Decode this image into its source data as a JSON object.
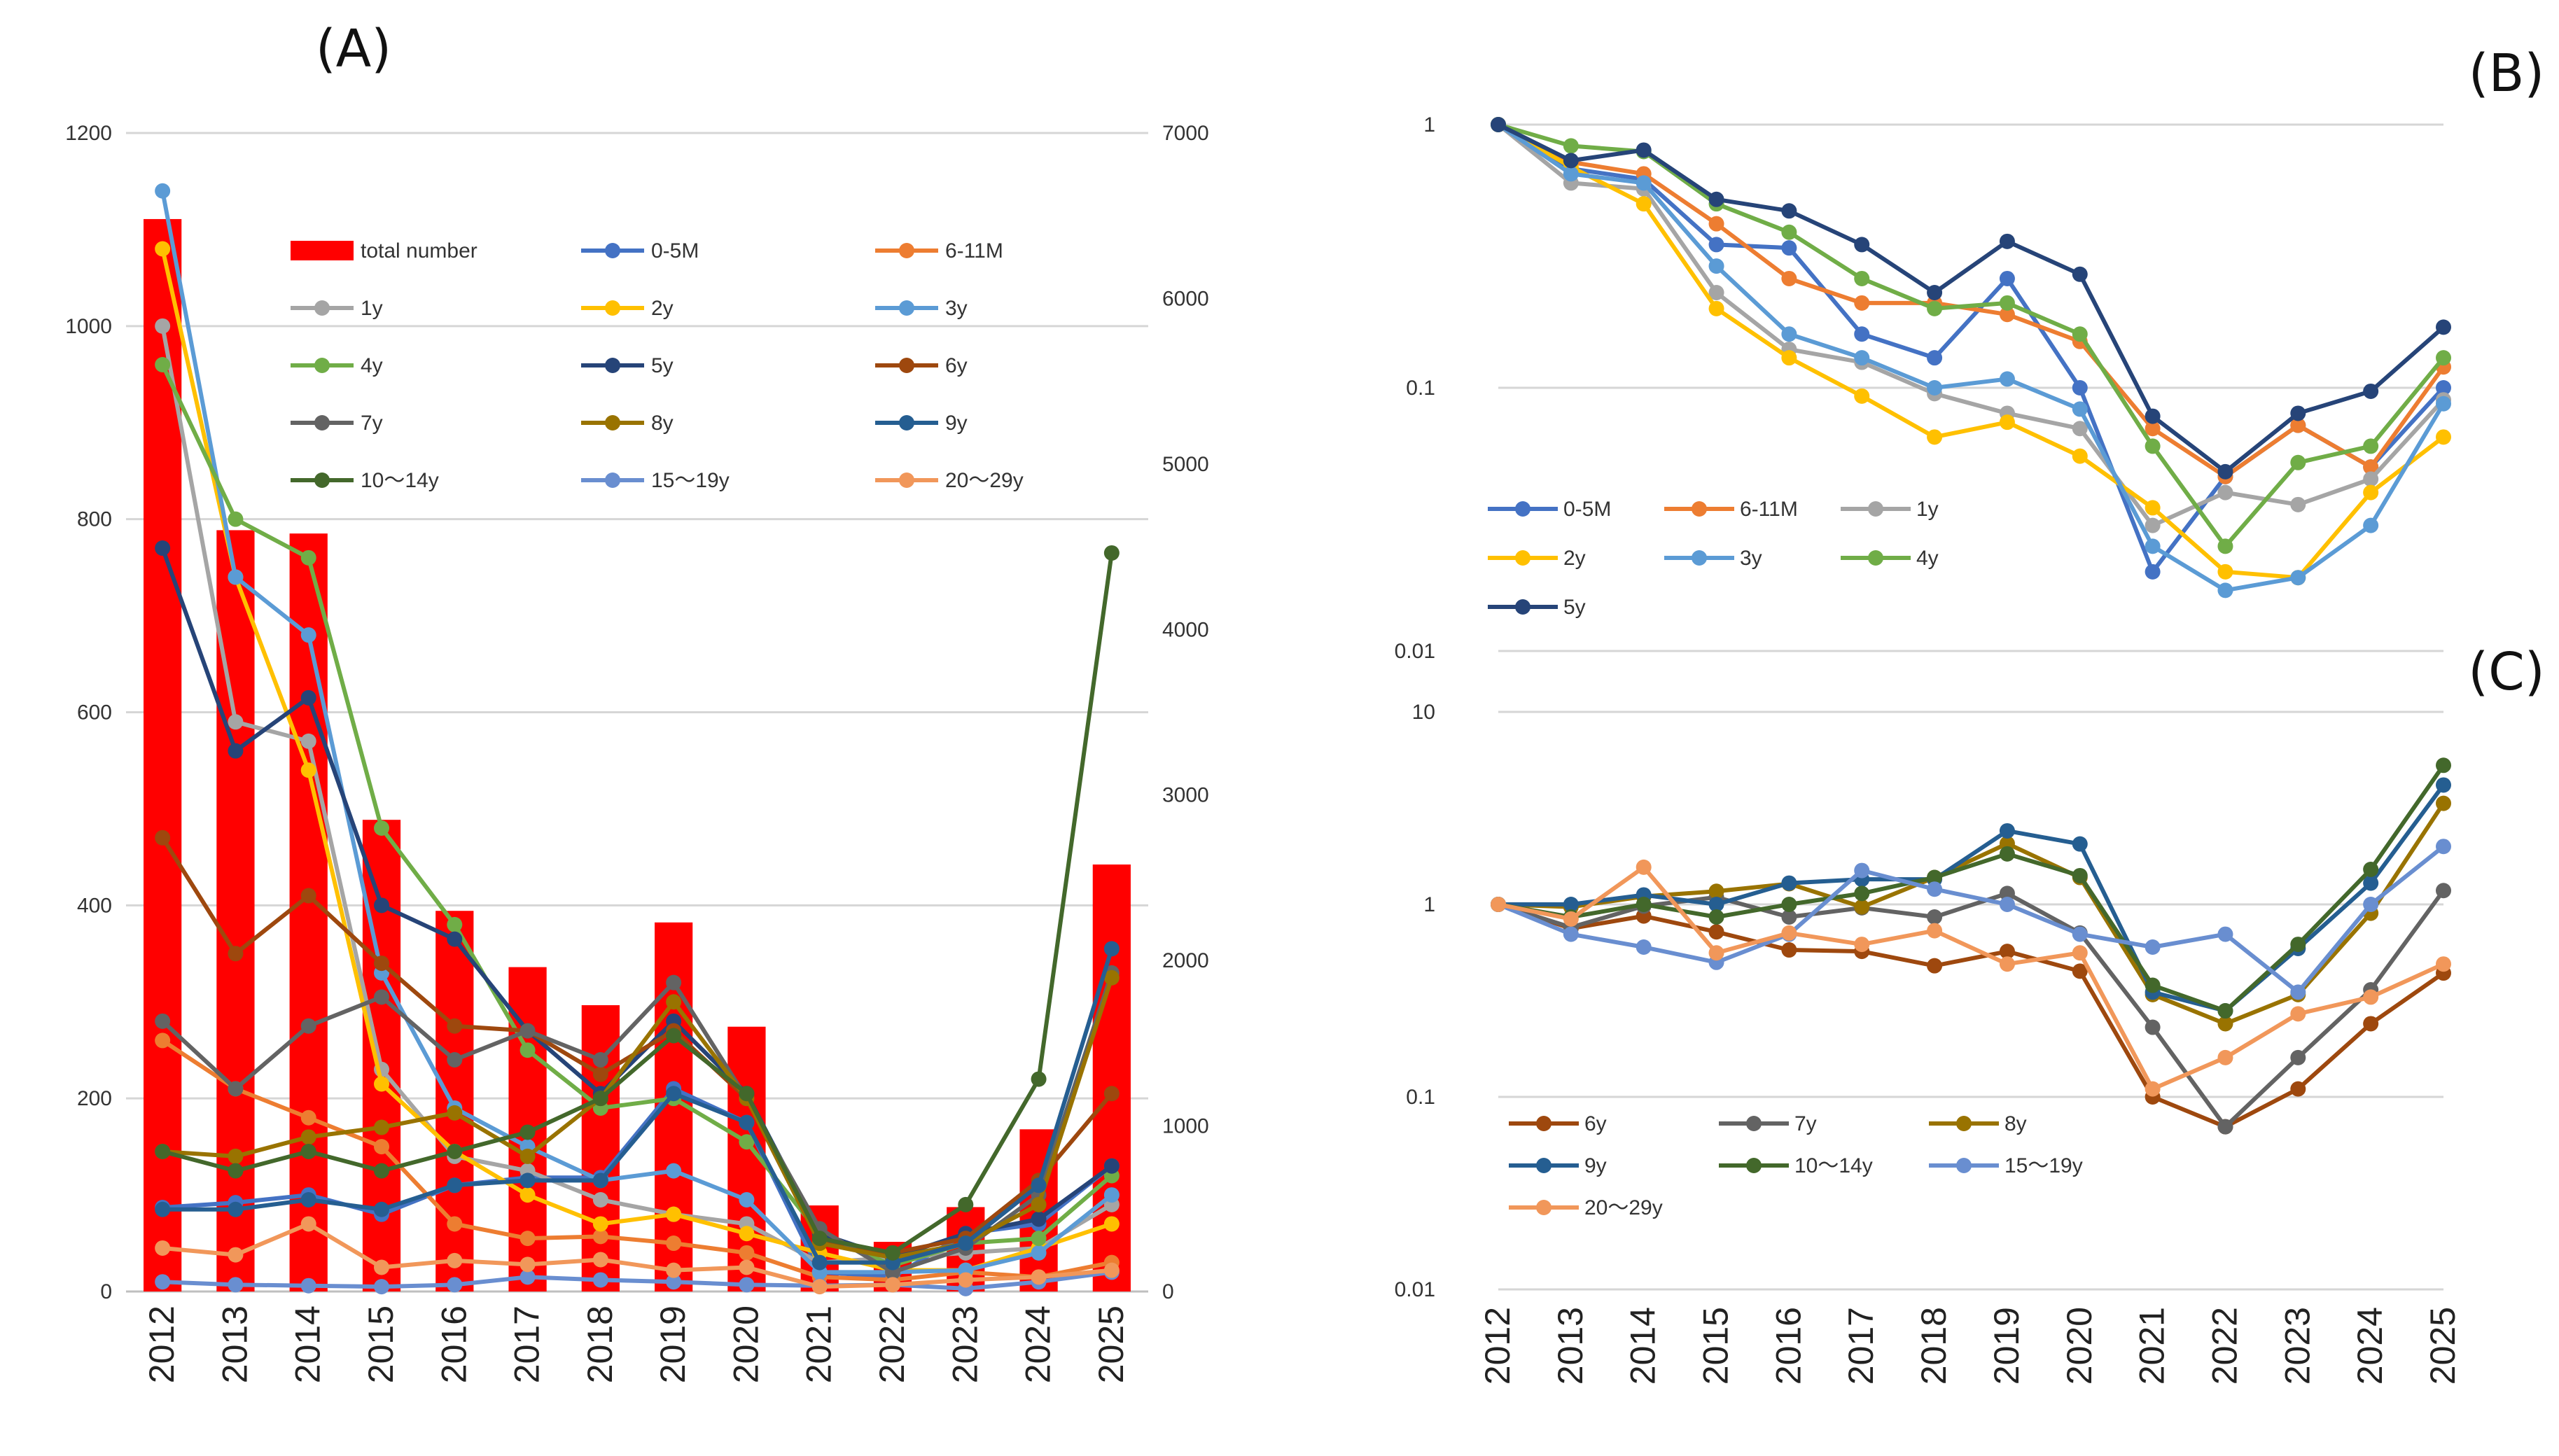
{
  "chart_data": [
    {
      "panel": "(A)",
      "type": "bar+line",
      "title": "",
      "categories": [
        "2012",
        "2013",
        "2014",
        "2015",
        "2016",
        "2017",
        "2018",
        "2019",
        "2020",
        "2021",
        "2022",
        "2023",
        "2024",
        "2025"
      ],
      "left_axis": {
        "ylim": [
          0,
          1200
        ],
        "ticks": [
          "0",
          "200",
          "400",
          "600",
          "800",
          "1000",
          "1200"
        ]
      },
      "right_axis": {
        "ylim": [
          0,
          7000
        ],
        "ticks": [
          "0",
          "1000",
          "2000",
          "3000",
          "4000",
          "5000",
          "6000",
          "7000"
        ]
      },
      "grid": true,
      "legend_position": "top",
      "bars": {
        "name": "total number",
        "axis": "right",
        "color": "#ff0000",
        "values": [
          6480,
          4600,
          4580,
          2850,
          2300,
          1960,
          1730,
          2230,
          1600,
          520,
          300,
          510,
          980,
          2580
        ]
      },
      "series": [
        {
          "name": "0-5M",
          "color": "#4472c4",
          "values": [
            87,
            92,
            100,
            80,
            110,
            118,
            118,
            210,
            175,
            20,
            15,
            60,
            70,
            130
          ]
        },
        {
          "name": "6-11M",
          "color": "#ed7d31",
          "values": [
            260,
            210,
            180,
            150,
            70,
            55,
            57,
            50,
            40,
            15,
            12,
            20,
            15,
            30
          ]
        },
        {
          "name": "1y",
          "color": "#a5a5a5",
          "values": [
            1000,
            590,
            570,
            230,
            140,
            125,
            95,
            80,
            70,
            30,
            35,
            40,
            45,
            90
          ]
        },
        {
          "name": "2y",
          "color": "#ffc000",
          "values": [
            1080,
            740,
            540,
            215,
            145,
            100,
            70,
            80,
            60,
            40,
            22,
            22,
            45,
            70
          ]
        },
        {
          "name": "3y",
          "color": "#5b9bd5",
          "values": [
            1140,
            740,
            680,
            330,
            190,
            150,
            115,
            125,
            95,
            20,
            20,
            22,
            40,
            100
          ]
        },
        {
          "name": "4y",
          "color": "#70ad47",
          "values": [
            960,
            800,
            760,
            480,
            380,
            250,
            190,
            200,
            155,
            60,
            27,
            50,
            55,
            120
          ]
        },
        {
          "name": "5y",
          "color": "#264478",
          "values": [
            770,
            560,
            615,
            400,
            365,
            270,
            205,
            280,
            205,
            60,
            35,
            60,
            75,
            130
          ]
        },
        {
          "name": "6y",
          "color": "#9e480e",
          "values": [
            470,
            350,
            410,
            340,
            275,
            270,
            225,
            270,
            200,
            50,
            40,
            55,
            115,
            205
          ]
        },
        {
          "name": "7y",
          "color": "#636363",
          "values": [
            280,
            210,
            275,
            305,
            240,
            270,
            240,
            320,
            200,
            65,
            20,
            45,
            100,
            330
          ]
        },
        {
          "name": "8y",
          "color": "#997300",
          "values": [
            145,
            140,
            160,
            170,
            185,
            140,
            200,
            300,
            200,
            50,
            35,
            50,
            90,
            325
          ]
        },
        {
          "name": "9y",
          "color": "#255e91",
          "values": [
            85,
            85,
            95,
            85,
            110,
            115,
            115,
            205,
            175,
            30,
            30,
            50,
            110,
            355
          ]
        },
        {
          "name": "10～14y",
          "color": "#43682b",
          "values": [
            145,
            125,
            145,
            125,
            145,
            165,
            200,
            265,
            205,
            55,
            40,
            90,
            220,
            765
          ]
        },
        {
          "name": "15～19y",
          "color": "#698ed0",
          "values": [
            10,
            7,
            6,
            5,
            7,
            15,
            12,
            10,
            7,
            6,
            7,
            3,
            10,
            20
          ]
        },
        {
          "name": "20～29y",
          "color": "#f1975a",
          "values": [
            45,
            38,
            70,
            25,
            32,
            28,
            33,
            22,
            25,
            5,
            7,
            12,
            15,
            22
          ]
        }
      ]
    },
    {
      "panel": "(B)",
      "type": "line",
      "scale": "log",
      "title": "",
      "categories": [
        "2012",
        "2013",
        "2014",
        "2015",
        "2016",
        "2017",
        "2018",
        "2019",
        "2020",
        "2021",
        "2022",
        "2023",
        "2024",
        "2025"
      ],
      "ylim": [
        0.01,
        1
      ],
      "y_ticks": [
        "0.01",
        "0.1",
        "1"
      ],
      "legend_position": "bottom-left",
      "series": [
        {
          "name": "0-5M",
          "color": "#4472c4",
          "values": [
            1,
            0.68,
            0.62,
            0.35,
            0.34,
            0.16,
            0.13,
            0.26,
            0.1,
            0.02,
            0.046,
            0.072,
            0.05,
            0.1
          ]
        },
        {
          "name": "6-11M",
          "color": "#ed7d31",
          "values": [
            1,
            0.72,
            0.65,
            0.42,
            0.26,
            0.21,
            0.21,
            0.19,
            0.15,
            0.07,
            0.046,
            0.072,
            0.05,
            0.12
          ]
        },
        {
          "name": "1y",
          "color": "#a5a5a5",
          "values": [
            1,
            0.6,
            0.57,
            0.23,
            0.14,
            0.125,
            0.095,
            0.08,
            0.07,
            0.03,
            0.04,
            0.036,
            0.045,
            0.09
          ]
        },
        {
          "name": "2y",
          "color": "#ffc000",
          "values": [
            1,
            0.69,
            0.5,
            0.2,
            0.13,
            0.093,
            0.065,
            0.074,
            0.055,
            0.035,
            0.02,
            0.019,
            0.04,
            0.065
          ]
        },
        {
          "name": "3y",
          "color": "#5b9bd5",
          "values": [
            1,
            0.65,
            0.6,
            0.29,
            0.16,
            0.13,
            0.1,
            0.108,
            0.083,
            0.025,
            0.017,
            0.019,
            0.03,
            0.087
          ]
        },
        {
          "name": "4y",
          "color": "#70ad47",
          "values": [
            1,
            0.83,
            0.79,
            0.5,
            0.39,
            0.26,
            0.2,
            0.21,
            0.16,
            0.06,
            0.025,
            0.052,
            0.06,
            0.13
          ]
        },
        {
          "name": "5y",
          "color": "#264478",
          "values": [
            1,
            0.73,
            0.8,
            0.52,
            0.47,
            0.35,
            0.23,
            0.36,
            0.27,
            0.078,
            0.048,
            0.08,
            0.097,
            0.17
          ]
        }
      ]
    },
    {
      "panel": "(C)",
      "type": "line",
      "scale": "log",
      "title": "",
      "categories": [
        "2012",
        "2013",
        "2014",
        "2015",
        "2016",
        "2017",
        "2018",
        "2019",
        "2020",
        "2021",
        "2022",
        "2023",
        "2024",
        "2025"
      ],
      "ylim": [
        0.01,
        10
      ],
      "y_ticks": [
        "0.01",
        "0.1",
        "1",
        "10"
      ],
      "legend_position": "bottom-left",
      "series": [
        {
          "name": "6y",
          "color": "#9e480e",
          "values": [
            1,
            0.75,
            0.87,
            0.72,
            0.58,
            0.57,
            0.48,
            0.57,
            0.45,
            0.1,
            0.07,
            0.11,
            0.24,
            0.44
          ]
        },
        {
          "name": "7y",
          "color": "#636363",
          "values": [
            1,
            0.76,
            0.98,
            1.09,
            0.86,
            0.96,
            0.86,
            1.14,
            0.71,
            0.23,
            0.07,
            0.16,
            0.36,
            1.18
          ]
        },
        {
          "name": "8y",
          "color": "#997300",
          "values": [
            1,
            0.97,
            1.1,
            1.17,
            1.28,
            0.97,
            1.38,
            2.07,
            1.38,
            0.34,
            0.24,
            0.34,
            0.9,
            3.35
          ]
        },
        {
          "name": "9y",
          "color": "#255e91",
          "values": [
            1,
            1.0,
            1.12,
            1.0,
            1.29,
            1.35,
            1.35,
            2.41,
            2.06,
            0.35,
            0.28,
            0.59,
            1.29,
            4.17
          ]
        },
        {
          "name": "10～14y",
          "color": "#43682b",
          "values": [
            1,
            0.86,
            1.0,
            0.86,
            1.0,
            1.14,
            1.38,
            1.83,
            1.41,
            0.38,
            0.28,
            0.62,
            1.52,
            5.28
          ]
        },
        {
          "name": "15～19y",
          "color": "#698ed0",
          "values": [
            1,
            0.7,
            0.6,
            0.5,
            0.7,
            1.5,
            1.2,
            1.0,
            0.7,
            0.6,
            0.7,
            0.35,
            1.0,
            2.0
          ]
        },
        {
          "name": "20～29y",
          "color": "#f1975a",
          "values": [
            1,
            0.84,
            1.56,
            0.56,
            0.71,
            0.62,
            0.73,
            0.49,
            0.56,
            0.11,
            0.16,
            0.27,
            0.33,
            0.49
          ]
        }
      ]
    }
  ]
}
